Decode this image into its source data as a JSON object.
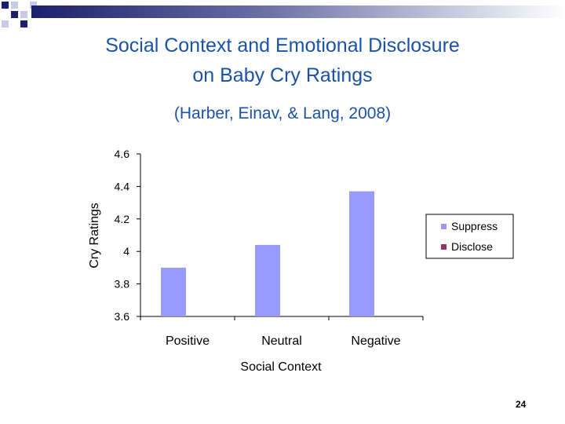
{
  "slide": {
    "title_line1": "Social Context and Emotional Disclosure",
    "title_line2": "on Baby Cry Ratings",
    "subtitle": "(Harber, Einav, & Lang, 2008)",
    "page_number": "24"
  },
  "colors": {
    "title": "#1a53a6",
    "suppress": "#9999ff",
    "disclose": "#993366",
    "deco_navy": "#1c1f6b",
    "deco_light": "#c9cbe6"
  },
  "chart_data": {
    "type": "bar",
    "title": "",
    "xlabel": "Social Context",
    "ylabel": "Cry Ratings",
    "ylim": [
      3.6,
      4.6
    ],
    "yticks": [
      "4.6",
      "4.4",
      "4.2",
      "4",
      "3.8",
      "3.6"
    ],
    "categories": [
      "Positive",
      "Neutral",
      "Negative"
    ],
    "series": [
      {
        "name": "Suppress",
        "values": [
          3.9,
          4.04,
          4.37
        ]
      },
      {
        "name": "Disclose",
        "values": [
          null,
          null,
          null
        ]
      }
    ],
    "legend": "right"
  }
}
